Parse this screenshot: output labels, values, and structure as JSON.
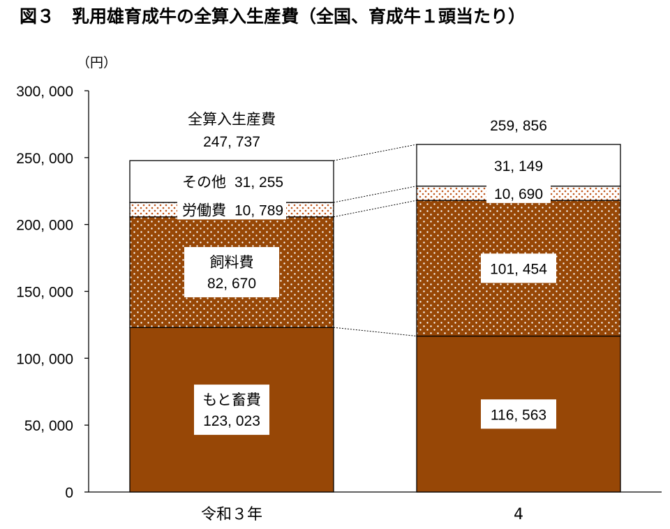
{
  "chart_data": {
    "type": "bar",
    "stacked": true,
    "title": "図３　乳用雄育成牛の全算入生産費（全国、育成牛１頭当たり）",
    "unit_label": "（円）",
    "categories": [
      "令和３年",
      "4"
    ],
    "ylim": [
      0,
      300000
    ],
    "yticks": [
      0,
      50000,
      100000,
      150000,
      200000,
      250000,
      300000
    ],
    "ytick_labels": [
      "0",
      "50, 000",
      "100, 000",
      "150, 000",
      "200, 000",
      "250, 000",
      "300, 000"
    ],
    "total_label": "全算入生産費",
    "totals": [
      247737,
      259856
    ],
    "total_texts": [
      "247, 737",
      "259, 856"
    ],
    "series": [
      {
        "name": "もと畜費",
        "values": [
          123023,
          116563
        ],
        "value_texts": [
          "123, 023",
          "116, 563"
        ],
        "color": "#974706",
        "pattern": "solid"
      },
      {
        "name": "飼料費",
        "values": [
          82670,
          101454
        ],
        "value_texts": [
          "82, 670",
          "101, 454"
        ],
        "color": "#974706",
        "pattern": "dots-white"
      },
      {
        "name": "労働費",
        "values": [
          10789,
          10690
        ],
        "value_texts": [
          "10, 789",
          "10, 690"
        ],
        "color": "#ffffff",
        "pattern": "dots-brown"
      },
      {
        "name": "その他",
        "values": [
          31255,
          31149
        ],
        "value_texts": [
          "31, 255",
          "31, 149"
        ],
        "color": "#ffffff",
        "pattern": "none"
      }
    ],
    "grid": false,
    "connector_lines": "dotted"
  }
}
